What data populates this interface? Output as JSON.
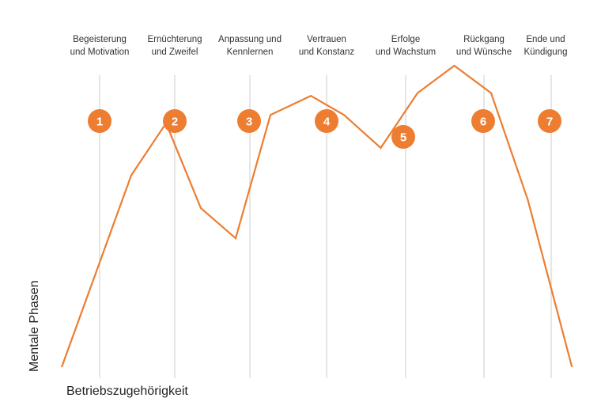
{
  "chart_data": {
    "type": "line",
    "title": "",
    "xlabel": "Betriebszugehörigkeit",
    "ylabel": "Mentale Phasen",
    "ylim": [
      0,
      100
    ],
    "grid": "vertical phase dividers",
    "phases": [
      {
        "number": "1",
        "label": [
          "Begeisterung",
          "und Motivation"
        ]
      },
      {
        "number": "2",
        "label": [
          "Ernüchterung",
          "und Zweifel"
        ]
      },
      {
        "number": "3",
        "label": [
          "Anpassung und",
          "Kennlernen"
        ]
      },
      {
        "number": "4",
        "label": [
          "Vertrauen",
          "und Konstanz"
        ]
      },
      {
        "number": "5",
        "label": [
          "Erfolge",
          "und Wachstum"
        ]
      },
      {
        "number": "6",
        "label": [
          "Rückgang",
          "und Wünsche"
        ]
      },
      {
        "number": "7",
        "label": [
          "Ende und",
          "Kündigung"
        ]
      }
    ],
    "series": [
      {
        "x": [
          0,
          1,
          1.5,
          2,
          2.5,
          3,
          3.55,
          4,
          4.5,
          5,
          5.5,
          6,
          6.5,
          7.1
        ],
        "values": [
          0,
          70,
          89,
          58,
          47,
          92,
          99,
          92,
          80,
          100,
          110,
          100,
          61,
          0
        ]
      }
    ],
    "colors": {
      "line": "#ED7D31",
      "badge": "#ED7D31",
      "grid": "#CCCCCC",
      "badge_text": "#FFFFFF"
    }
  }
}
